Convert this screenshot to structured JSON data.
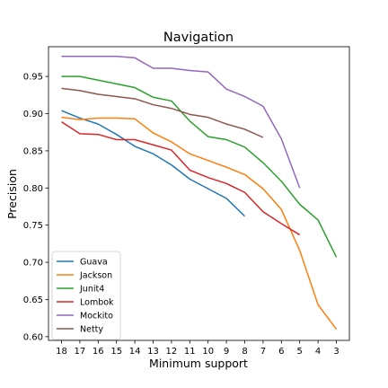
{
  "chart_data": {
    "type": "line",
    "title": "Navigation",
    "xlabel": "Minimum support",
    "ylabel": "Precision",
    "x": [
      18,
      17,
      16,
      15,
      14,
      13,
      12,
      11,
      10,
      9,
      8,
      7,
      6,
      5,
      4,
      3
    ],
    "x_inverted": true,
    "ylim": [
      0.595,
      0.99
    ],
    "yticks": [
      0.6,
      0.65,
      0.7,
      0.75,
      0.8,
      0.85,
      0.9,
      0.95
    ],
    "grid": false,
    "legend_position": "lower-left",
    "series": [
      {
        "name": "Guava",
        "color": "#1f77b4",
        "points": [
          [
            18,
            0.904
          ],
          [
            17,
            0.894
          ],
          [
            16,
            0.886
          ],
          [
            15,
            0.872
          ],
          [
            14,
            0.856
          ],
          [
            13,
            0.846
          ],
          [
            12,
            0.831
          ],
          [
            11,
            0.812
          ],
          [
            10,
            0.799
          ],
          [
            9,
            0.786
          ],
          [
            8,
            0.762
          ]
        ]
      },
      {
        "name": "Jackson",
        "color": "#ff7f0e",
        "points": [
          [
            18,
            0.895
          ],
          [
            17,
            0.892
          ],
          [
            16,
            0.894
          ],
          [
            15,
            0.894
          ],
          [
            14,
            0.893
          ],
          [
            13,
            0.874
          ],
          [
            12,
            0.862
          ],
          [
            11,
            0.846
          ],
          [
            10,
            0.837
          ],
          [
            9,
            0.828
          ],
          [
            8,
            0.818
          ],
          [
            7,
            0.799
          ],
          [
            6,
            0.771
          ],
          [
            5,
            0.716
          ],
          [
            4,
            0.643
          ],
          [
            3,
            0.61
          ]
        ]
      },
      {
        "name": "Junit4",
        "color": "#2ca02c",
        "points": [
          [
            18,
            0.95
          ],
          [
            17,
            0.95
          ],
          [
            16,
            0.945
          ],
          [
            15,
            0.94
          ],
          [
            14,
            0.935
          ],
          [
            13,
            0.922
          ],
          [
            12,
            0.917
          ],
          [
            11,
            0.89
          ],
          [
            10,
            0.869
          ],
          [
            9,
            0.865
          ],
          [
            8,
            0.855
          ],
          [
            7,
            0.834
          ],
          [
            6,
            0.809
          ],
          [
            5,
            0.778
          ],
          [
            4,
            0.757
          ],
          [
            3,
            0.707
          ]
        ]
      },
      {
        "name": "Lombok",
        "color": "#d62728",
        "points": [
          [
            18,
            0.889
          ],
          [
            17,
            0.873
          ],
          [
            16,
            0.872
          ],
          [
            15,
            0.865
          ],
          [
            14,
            0.865
          ],
          [
            13,
            0.858
          ],
          [
            12,
            0.851
          ],
          [
            11,
            0.824
          ],
          [
            10,
            0.814
          ],
          [
            9,
            0.806
          ],
          [
            8,
            0.794
          ],
          [
            7,
            0.768
          ],
          [
            6,
            0.752
          ],
          [
            5,
            0.737
          ]
        ]
      },
      {
        "name": "Mockito",
        "color": "#9467bd",
        "points": [
          [
            18,
            0.977
          ],
          [
            17,
            0.977
          ],
          [
            16,
            0.977
          ],
          [
            15,
            0.977
          ],
          [
            14,
            0.975
          ],
          [
            13,
            0.961
          ],
          [
            12,
            0.961
          ],
          [
            11,
            0.958
          ],
          [
            10,
            0.956
          ],
          [
            9,
            0.933
          ],
          [
            8,
            0.923
          ],
          [
            7,
            0.91
          ],
          [
            6,
            0.866
          ],
          [
            5,
            0.8
          ]
        ]
      },
      {
        "name": "Netty",
        "color": "#8c564b",
        "points": [
          [
            18,
            0.934
          ],
          [
            17,
            0.931
          ],
          [
            16,
            0.926
          ],
          [
            15,
            0.923
          ],
          [
            14,
            0.92
          ],
          [
            13,
            0.912
          ],
          [
            12,
            0.907
          ],
          [
            11,
            0.899
          ],
          [
            10,
            0.895
          ],
          [
            9,
            0.886
          ],
          [
            8,
            0.879
          ],
          [
            7,
            0.868
          ]
        ]
      }
    ]
  }
}
